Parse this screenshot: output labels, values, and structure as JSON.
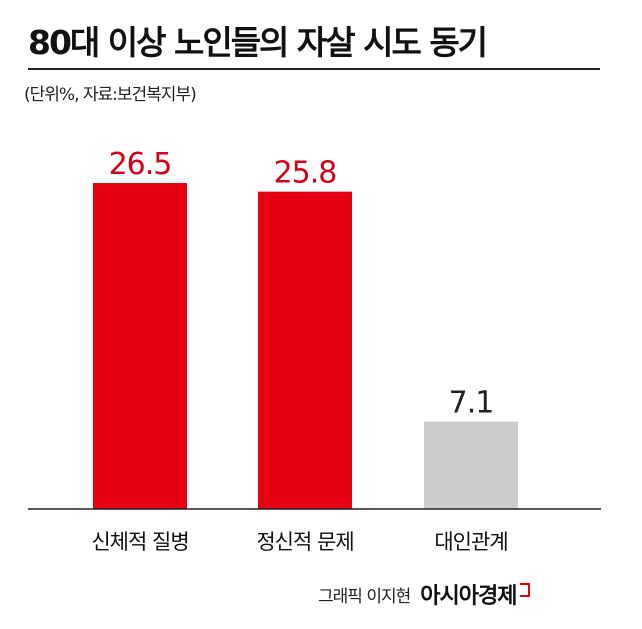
{
  "title": "80대 이상 노인들의 자살 시도 동기",
  "subtitle": "(단위%, 자료:보건복지부)",
  "footer": {
    "credit": "그래픽 이지현",
    "brand": "아시아경제"
  },
  "colors": {
    "primary": "#e60012",
    "other": "#cccccc",
    "axis": "#222222"
  },
  "chart_data": {
    "type": "bar",
    "categories": [
      "신체적 질병",
      "정신적 문제",
      "대인관계"
    ],
    "values": [
      26.5,
      25.8,
      7.1
    ],
    "value_labels": [
      "26.5",
      "25.8",
      "7.1"
    ],
    "bar_colors": [
      "#e60012",
      "#e60012",
      "#cccccc"
    ],
    "value_label_colors": [
      "#d0021b",
      "#d0021b",
      "#222222"
    ],
    "ylim": [
      0,
      30
    ],
    "grid": false,
    "legend": "none"
  }
}
